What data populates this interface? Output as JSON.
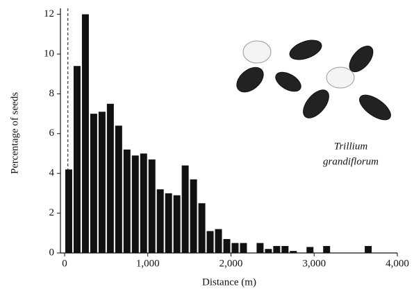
{
  "chart_data": {
    "type": "histogram",
    "xlabel": "Distance (m)",
    "ylabel": "Percentage of seeds",
    "annotation": [
      "Trillium",
      "grandiflorum"
    ],
    "bins": [
      0,
      100,
      200,
      300,
      400,
      500,
      600,
      700,
      800,
      900,
      1000,
      1100,
      1200,
      1300,
      1400,
      1500,
      1600,
      1700,
      1800,
      1900,
      2000,
      2100,
      2200,
      2300,
      2400,
      2500,
      2600,
      2700,
      2800,
      2900,
      3000,
      3100,
      3200,
      3300,
      3400,
      3500,
      3600,
      3700
    ],
    "values": [
      4.2,
      9.4,
      12,
      7,
      7.1,
      7.5,
      6.4,
      5.2,
      4.9,
      5.0,
      4.7,
      3.2,
      3.0,
      2.9,
      4.4,
      3.7,
      2.5,
      1.1,
      1.2,
      0.7,
      0.5,
      0.5,
      0,
      0.5,
      0.2,
      0.35,
      0.35,
      0.1,
      0,
      0.3,
      0,
      0.35,
      0,
      0,
      0,
      0,
      0.35
    ],
    "color": "#111111",
    "dashed_line_x": 40,
    "xlim": [
      -50,
      4000
    ],
    "ylim": [
      0,
      12.3
    ],
    "xticks": [
      0,
      {
        "value": 1000,
        "label": "1,000"
      },
      {
        "value": 2000,
        "label": "2,000"
      },
      {
        "value": 3000,
        "label": "3,000"
      },
      {
        "value": 4000,
        "label": "4,000"
      }
    ],
    "yticks": [
      0,
      2,
      4,
      6,
      8,
      10,
      12
    ]
  }
}
